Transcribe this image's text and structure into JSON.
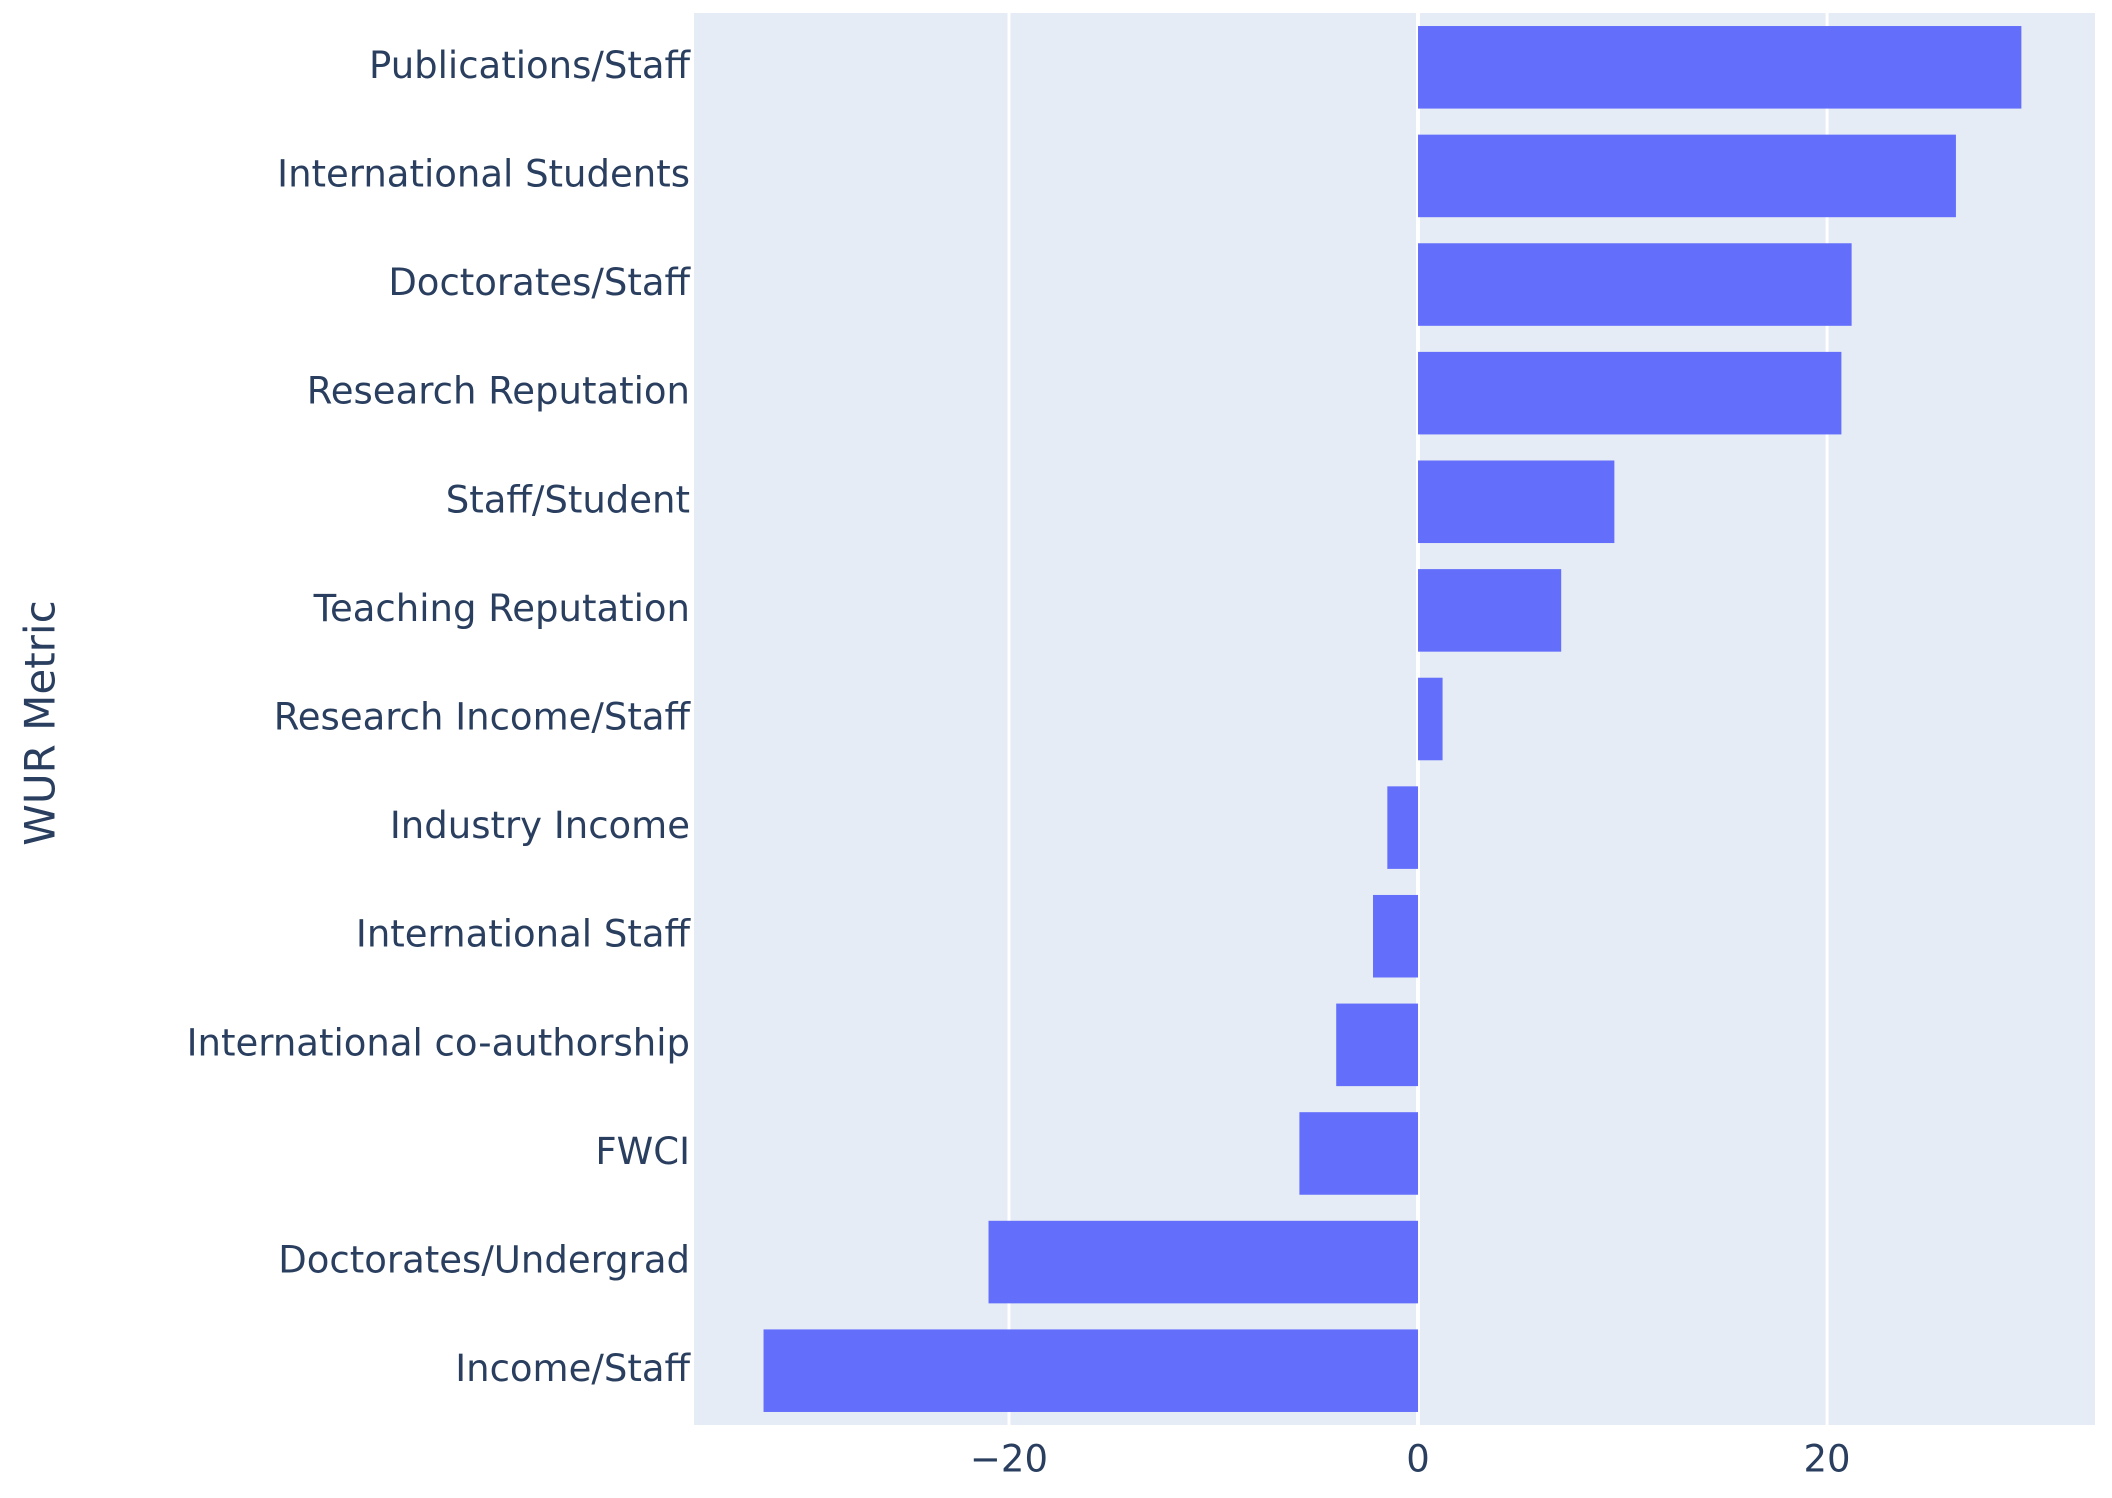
{
  "chart_data": {
    "type": "barh",
    "ylabel": "WUR Metric",
    "categories": [
      "Publications/Staff",
      "International Students",
      "Doctorates/Staff",
      "Research Reputation",
      "Staff/Student",
      "Teaching Reputation",
      "Research Income/Staff",
      "Industry Income",
      "International Staff",
      "International co-authorship",
      "FWCI",
      "Doctorates/Undergrad",
      "Income/Staff"
    ],
    "values": [
      29.5,
      26.3,
      21.2,
      20.7,
      9.6,
      7.0,
      1.2,
      -1.5,
      -2.2,
      -4.0,
      -5.8,
      -21.0,
      -32.0
    ],
    "color": "#636efa",
    "xlim": [
      -35.4,
      33.1
    ],
    "xticks": [
      {
        "value": -20,
        "label": "−20"
      },
      0,
      20
    ],
    "grid": true
  }
}
